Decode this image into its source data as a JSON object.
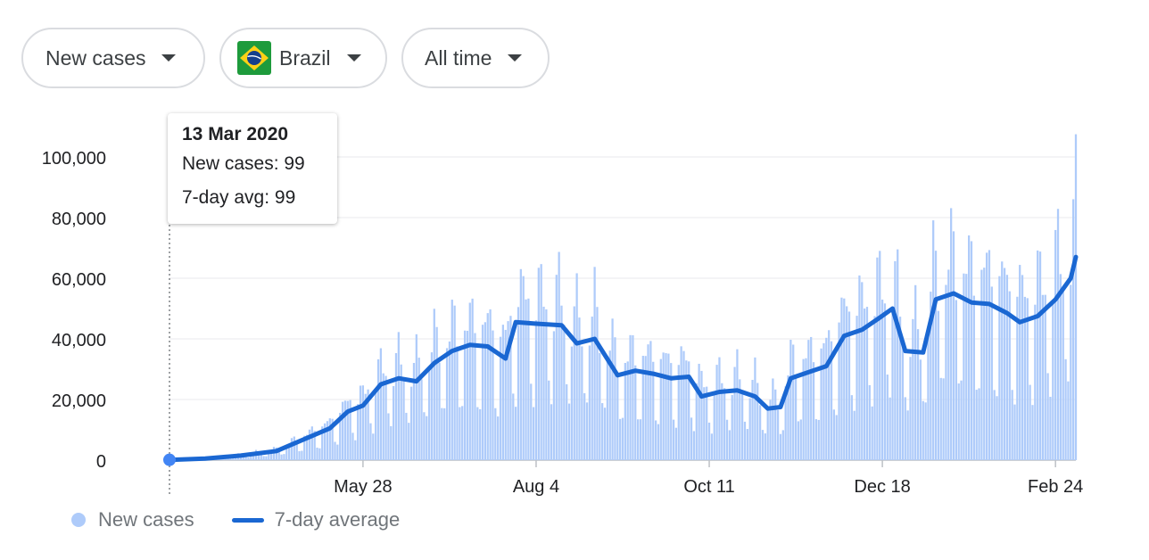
{
  "filters": {
    "metric": {
      "label": "New cases"
    },
    "region": {
      "label": "Brazil",
      "flag_icon": "brazil-flag-icon"
    },
    "range": {
      "label": "All time"
    }
  },
  "tooltip": {
    "date": "13 Mar 2020",
    "new_cases": "New cases: 99",
    "avg": "7-day avg: 99"
  },
  "legend": {
    "bars": "New cases",
    "line": "7-day average"
  },
  "colors": {
    "bars": "#aecbfa",
    "line": "#1a67d2",
    "marker": "#4285f4",
    "grid": "#e8eaed"
  },
  "chart_data": {
    "type": "bar",
    "start_date": "2020-03-13",
    "end_date": "2021-03-04",
    "ylim": [
      0,
      100000
    ],
    "y_ticks": [
      0,
      20000,
      40000,
      60000,
      80000,
      100000
    ],
    "y_tick_labels": [
      "0",
      "20,000",
      "40,000",
      "60,000",
      "80,000",
      "100,000"
    ],
    "x_ticks": [
      {
        "date": "2020-05-28",
        "label": "May 28"
      },
      {
        "date": "2020-08-04",
        "label": "Aug 4"
      },
      {
        "date": "2020-10-11",
        "label": "Oct 11"
      },
      {
        "date": "2020-12-18",
        "label": "Dec 18"
      },
      {
        "date": "2021-02-24",
        "label": "Feb 24"
      }
    ],
    "grid": true,
    "legend_position": "bottom-left",
    "series": [
      {
        "name": "7-day average",
        "type": "line",
        "points": [
          [
            "2020-03-13",
            99
          ],
          [
            "2020-03-27",
            500
          ],
          [
            "2020-04-10",
            1500
          ],
          [
            "2020-04-24",
            3000
          ],
          [
            "2020-05-01",
            5500
          ],
          [
            "2020-05-08",
            8000
          ],
          [
            "2020-05-15",
            10500
          ],
          [
            "2020-05-22",
            16000
          ],
          [
            "2020-05-28",
            18000
          ],
          [
            "2020-06-04",
            25000
          ],
          [
            "2020-06-11",
            27000
          ],
          [
            "2020-06-18",
            26000
          ],
          [
            "2020-06-25",
            32000
          ],
          [
            "2020-07-02",
            36000
          ],
          [
            "2020-07-09",
            38000
          ],
          [
            "2020-07-16",
            37500
          ],
          [
            "2020-07-23",
            33500
          ],
          [
            "2020-07-27",
            45500
          ],
          [
            "2020-08-04",
            45000
          ],
          [
            "2020-08-14",
            44500
          ],
          [
            "2020-08-20",
            38500
          ],
          [
            "2020-08-27",
            40000
          ],
          [
            "2020-09-05",
            28000
          ],
          [
            "2020-09-12",
            29500
          ],
          [
            "2020-09-19",
            28500
          ],
          [
            "2020-09-26",
            27000
          ],
          [
            "2020-10-03",
            27500
          ],
          [
            "2020-10-08",
            21000
          ],
          [
            "2020-10-15",
            22500
          ],
          [
            "2020-10-22",
            23000
          ],
          [
            "2020-10-29",
            21000
          ],
          [
            "2020-11-03",
            17000
          ],
          [
            "2020-11-08",
            17500
          ],
          [
            "2020-11-12",
            27000
          ],
          [
            "2020-11-19",
            29000
          ],
          [
            "2020-11-26",
            31000
          ],
          [
            "2020-12-03",
            41000
          ],
          [
            "2020-12-10",
            43000
          ],
          [
            "2020-12-17",
            47000
          ],
          [
            "2020-12-22",
            50000
          ],
          [
            "2020-12-27",
            36000
          ],
          [
            "2021-01-03",
            35500
          ],
          [
            "2021-01-08",
            53000
          ],
          [
            "2021-01-15",
            55000
          ],
          [
            "2021-01-22",
            52000
          ],
          [
            "2021-01-29",
            51500
          ],
          [
            "2021-02-05",
            48500
          ],
          [
            "2021-02-10",
            45500
          ],
          [
            "2021-02-17",
            47500
          ],
          [
            "2021-02-24",
            53000
          ],
          [
            "2021-03-02",
            60000
          ],
          [
            "2021-03-04",
            67000
          ]
        ]
      }
    ]
  }
}
